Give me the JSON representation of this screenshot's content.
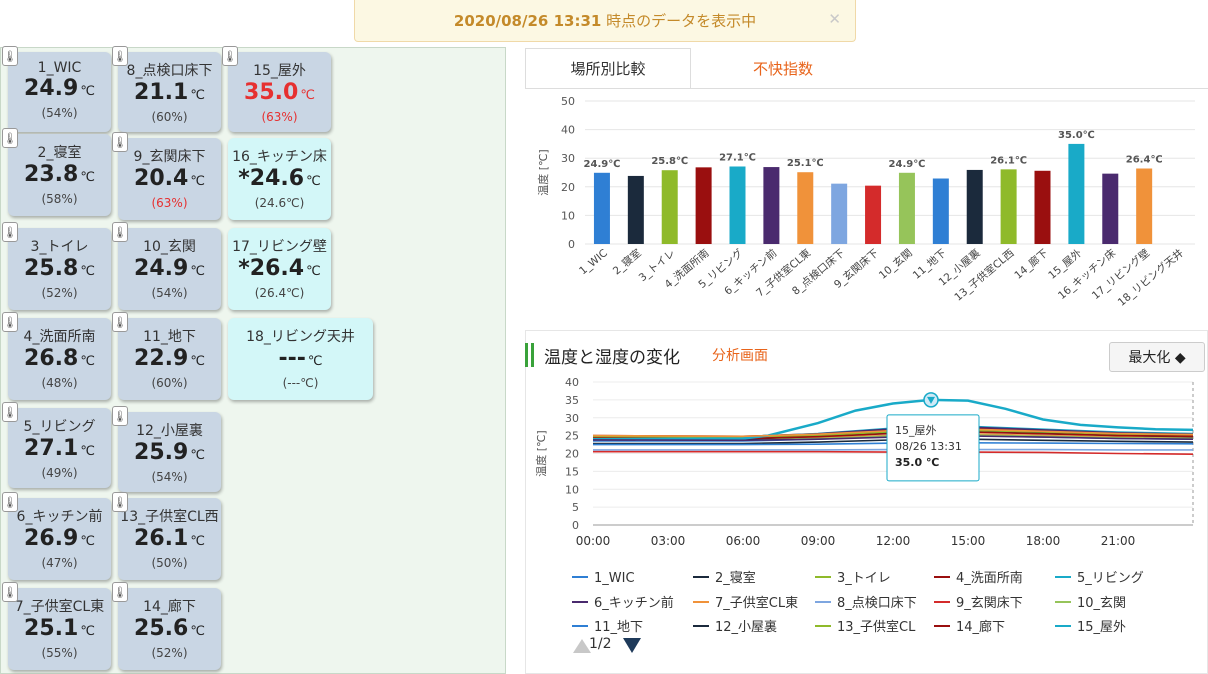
{
  "banner": {
    "timestamp": "2020/08/26 13:31",
    "suffix": " 時点のデータを表示中",
    "close": "✕"
  },
  "sensors": [
    {
      "name": "1_WIC",
      "temp": "24.9",
      "unit": "℃",
      "hum": "(54%)"
    },
    {
      "name": "8_点検口床下",
      "temp": "21.1",
      "unit": "℃",
      "hum": "(60%)"
    },
    {
      "name": "15_屋外",
      "temp": "35.0",
      "unit": "℃",
      "hum": "(63%)"
    },
    {
      "name": "2_寝室",
      "temp": "23.8",
      "unit": "℃",
      "hum": "(58%)"
    },
    {
      "name": "9_玄関床下",
      "temp": "20.4",
      "unit": "℃",
      "hum": "(63%)"
    },
    {
      "name": "16_キッチン床",
      "temp": "*24.6",
      "unit": "℃",
      "hum": "(24.6℃)"
    },
    {
      "name": "3_トイレ",
      "temp": "25.8",
      "unit": "℃",
      "hum": "(52%)"
    },
    {
      "name": "10_玄関",
      "temp": "24.9",
      "unit": "℃",
      "hum": "(54%)"
    },
    {
      "name": "17_リビング壁",
      "temp": "*26.4",
      "unit": "℃",
      "hum": "(26.4℃)"
    },
    {
      "name": "4_洗面所南",
      "temp": "26.8",
      "unit": "℃",
      "hum": "(48%)"
    },
    {
      "name": "11_地下",
      "temp": "22.9",
      "unit": "℃",
      "hum": "(60%)"
    },
    {
      "name": "18_リビング天井",
      "temp": "---",
      "unit": "℃",
      "hum": "(---℃)"
    },
    {
      "name": "5_リビング",
      "temp": "27.1",
      "unit": "℃",
      "hum": "(49%)"
    },
    {
      "name": "12_小屋裏",
      "temp": "25.9",
      "unit": "℃",
      "hum": "(54%)"
    },
    {
      "name": "6_キッチン前",
      "temp": "26.9",
      "unit": "℃",
      "hum": "(47%)"
    },
    {
      "name": "13_子供室CL西",
      "temp": "26.1",
      "unit": "℃",
      "hum": "(50%)"
    },
    {
      "name": "7_子供室CL東",
      "temp": "25.1",
      "unit": "℃",
      "hum": "(55%)"
    },
    {
      "name": "14_廊下",
      "temp": "25.6",
      "unit": "℃",
      "hum": "(52%)"
    }
  ],
  "tabs": {
    "active": "場所別比較",
    "inactive": "不快指数"
  },
  "section": {
    "title": "温度と湿度の変化",
    "link": "分析画面",
    "maximize": "最大化 ◆"
  },
  "pager": {
    "label": "1/2"
  },
  "tooltip": {
    "name": "15_屋外",
    "time": "08/26 13:31",
    "value": "35.0 ℃"
  },
  "colors": {
    "accent": "#e8641b",
    "hot": "#e63030",
    "banner_text": "#c48a2a",
    "cyan_card": "#d3f7f8",
    "card": "#c9d6e4"
  },
  "chart_data": [
    {
      "type": "bar",
      "title": "",
      "ylabel": "温度 [℃]",
      "ylim": [
        0,
        50
      ],
      "yticks": [
        0,
        10,
        20,
        30,
        40,
        50
      ],
      "categories": [
        "1_WIC",
        "2_寝室",
        "3_トイレ",
        "4_洗面所南",
        "5_リビング",
        "6_キッチン前",
        "7_子供室CL東",
        "8_点検口床下",
        "9_玄関床下",
        "10_玄関",
        "11_地下",
        "12_小屋裏",
        "13_子供室CL西",
        "14_廊下",
        "15_屋外",
        "16_キッチン床",
        "17_リビング壁",
        "18_リビング天井"
      ],
      "values": [
        24.9,
        23.8,
        25.8,
        26.8,
        27.1,
        26.9,
        25.1,
        21.1,
        20.4,
        24.9,
        22.9,
        25.9,
        26.1,
        25.6,
        35.0,
        24.6,
        26.4,
        null
      ],
      "colors": [
        "#2f7fd4",
        "#1b2a3c",
        "#8fba2a",
        "#9a0f0f",
        "#19aac8",
        "#4a2a6e",
        "#f0923a",
        "#7ea6e0",
        "#d42b2b",
        "#96c45a",
        "#2f7fd4",
        "#1b2a3c",
        "#8fba2a",
        "#9a0f0f",
        "#19aac8",
        "#4a2a6e",
        "#f0923a",
        "#7ea6e0"
      ],
      "data_labels": [
        {
          "index": 0,
          "text": "24.9℃"
        },
        {
          "index": 2,
          "text": "25.8℃"
        },
        {
          "index": 4,
          "text": "27.1℃"
        },
        {
          "index": 6,
          "text": "25.1℃"
        },
        {
          "index": 9,
          "text": "24.9℃"
        },
        {
          "index": 12,
          "text": "26.1℃"
        },
        {
          "index": 14,
          "text": "35.0℃"
        },
        {
          "index": 16,
          "text": "26.4℃"
        }
      ]
    },
    {
      "type": "line",
      "title": "",
      "ylabel": "温度 [℃]",
      "ylim": [
        0,
        40
      ],
      "yticks": [
        0,
        5,
        10,
        15,
        20,
        25,
        30,
        35,
        40
      ],
      "xlim": [
        0,
        24
      ],
      "xticks": [
        {
          "v": 0,
          "label": "00:00"
        },
        {
          "v": 3,
          "label": "03:00"
        },
        {
          "v": 6,
          "label": "06:00"
        },
        {
          "v": 9,
          "label": "09:00"
        },
        {
          "v": 12,
          "label": "12:00"
        },
        {
          "v": 15,
          "label": "15:00"
        },
        {
          "v": 18,
          "label": "18:00"
        },
        {
          "v": 21,
          "label": "21:00"
        }
      ],
      "highlight": {
        "series": "15_屋外",
        "x": 13.52,
        "y": 35.0
      },
      "series": [
        {
          "name": "1_WIC",
          "color": "#2f7fd4",
          "x": [
            0,
            6,
            9,
            12,
            15,
            18,
            21,
            24
          ],
          "values": [
            23.5,
            23.5,
            24.0,
            24.9,
            25.0,
            24.6,
            24.2,
            24.0
          ]
        },
        {
          "name": "2_寝室",
          "color": "#1b2a3c",
          "x": [
            0,
            6,
            9,
            12,
            15,
            18,
            21,
            24
          ],
          "values": [
            22.8,
            22.8,
            23.2,
            23.8,
            24.0,
            23.7,
            23.4,
            23.2
          ]
        },
        {
          "name": "3_トイレ",
          "color": "#8fba2a",
          "x": [
            0,
            6,
            9,
            12,
            15,
            18,
            21,
            24
          ],
          "values": [
            24.5,
            24.4,
            24.8,
            25.8,
            26.2,
            25.6,
            25.0,
            24.8
          ]
        },
        {
          "name": "4_洗面所南",
          "color": "#9a0f0f",
          "x": [
            0,
            6,
            9,
            12,
            15,
            18,
            21,
            24
          ],
          "values": [
            25.0,
            24.8,
            25.5,
            26.8,
            27.2,
            26.5,
            25.8,
            25.5
          ]
        },
        {
          "name": "5_リビング",
          "color": "#19aac8",
          "x": [
            0,
            6,
            9,
            12,
            15,
            18,
            21,
            24
          ],
          "values": [
            24.8,
            24.6,
            25.6,
            27.1,
            27.6,
            26.8,
            26.0,
            25.6
          ]
        },
        {
          "name": "6_キッチン前",
          "color": "#4a2a6e",
          "x": [
            0,
            6,
            9,
            12,
            15,
            18,
            21,
            24
          ],
          "values": [
            24.6,
            24.5,
            25.5,
            26.9,
            27.4,
            26.6,
            25.8,
            25.4
          ]
        },
        {
          "name": "7_子供室CL東",
          "color": "#f0923a",
          "x": [
            0,
            6,
            9,
            12,
            15,
            18,
            21,
            24
          ],
          "values": [
            24.0,
            23.9,
            24.4,
            25.1,
            25.5,
            25.0,
            24.6,
            24.3
          ]
        },
        {
          "name": "8_点検口床下",
          "color": "#7ea6e0",
          "x": [
            0,
            6,
            9,
            12,
            15,
            18,
            21,
            24
          ],
          "values": [
            21.0,
            21.0,
            21.0,
            21.1,
            21.1,
            21.1,
            21.0,
            21.0
          ]
        },
        {
          "name": "9_玄関床下",
          "color": "#d42b2b",
          "x": [
            0,
            6,
            9,
            12,
            15,
            18,
            21,
            24
          ],
          "values": [
            20.5,
            20.5,
            20.5,
            20.4,
            20.4,
            20.3,
            20.0,
            19.8
          ]
        },
        {
          "name": "10_玄関",
          "color": "#96c45a",
          "x": [
            0,
            6,
            9,
            12,
            15,
            18,
            21,
            24
          ],
          "values": [
            24.0,
            23.8,
            24.2,
            24.9,
            25.2,
            24.8,
            24.4,
            24.2
          ]
        },
        {
          "name": "11_地下",
          "color": "#2f7fd4",
          "x": [
            0,
            6,
            9,
            12,
            15,
            18,
            21,
            24
          ],
          "values": [
            22.5,
            22.5,
            22.6,
            22.9,
            23.0,
            22.9,
            22.8,
            22.7
          ]
        },
        {
          "name": "12_小屋裏",
          "color": "#1b2a3c",
          "x": [
            0,
            6,
            9,
            12,
            15,
            18,
            21,
            24
          ],
          "values": [
            24.2,
            24.0,
            24.8,
            25.9,
            26.4,
            25.8,
            25.0,
            24.7
          ]
        },
        {
          "name": "13_子供室CL西",
          "color": "#8fba2a",
          "x": [
            0,
            6,
            9,
            12,
            15,
            18,
            21,
            24
          ],
          "values": [
            24.6,
            24.5,
            25.0,
            26.1,
            26.5,
            26.0,
            25.4,
            25.1
          ]
        },
        {
          "name": "14_廊下",
          "color": "#9a0f0f",
          "x": [
            0,
            6,
            9,
            12,
            15,
            18,
            21,
            24
          ],
          "values": [
            24.3,
            24.2,
            24.7,
            25.6,
            26.0,
            25.5,
            25.0,
            24.8
          ]
        },
        {
          "name": "15_屋外",
          "color": "#19aac8",
          "x": [
            0,
            6,
            7,
            9,
            10.5,
            12,
            13.5,
            15,
            16.5,
            18,
            19.5,
            21,
            22.5,
            24
          ],
          "values": [
            24.0,
            24.2,
            25.0,
            28.5,
            32.0,
            34.0,
            35.0,
            34.8,
            32.5,
            29.5,
            28.0,
            27.3,
            26.8,
            26.6
          ]
        },
        {
          "name": "16_キッチン床",
          "color": "#4a2a6e",
          "x": [
            0,
            6,
            9,
            12,
            15,
            18,
            21,
            24
          ],
          "values": [
            23.8,
            23.7,
            24.0,
            24.6,
            24.9,
            24.6,
            24.2,
            24.0
          ]
        },
        {
          "name": "17_リビング壁",
          "color": "#f0923a",
          "x": [
            0,
            6,
            9,
            12,
            15,
            18,
            21,
            24
          ],
          "values": [
            25.0,
            24.8,
            25.4,
            26.4,
            26.8,
            26.2,
            25.6,
            25.3
          ]
        },
        {
          "name": "18_リビング天井",
          "color": "#7ea6e0",
          "x": [],
          "values": []
        }
      ],
      "legend": [
        "1_WIC",
        "2_寝室",
        "3_トイレ",
        "4_洗面所南",
        "5_リビング",
        "6_キッチン前",
        "7_子供室CL東",
        "8_点検口床下",
        "9_玄関床下",
        "10_玄関",
        "11_地下",
        "12_小屋裏",
        "13_子供室CL",
        "14_廊下",
        "15_屋外"
      ]
    }
  ]
}
